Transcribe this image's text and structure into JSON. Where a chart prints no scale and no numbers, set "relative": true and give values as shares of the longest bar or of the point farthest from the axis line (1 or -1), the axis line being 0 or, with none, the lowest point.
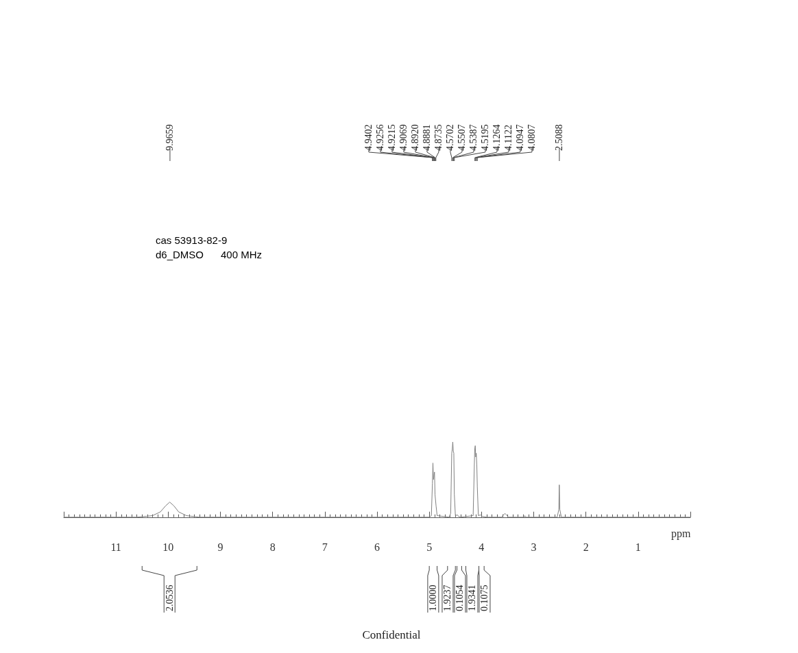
{
  "chart_data": {
    "type": "line",
    "title": "cas 53913-82-9",
    "subtitle": "d6_DMSO      400 MHz",
    "xlabel": "ppm",
    "relative": true,
    "grid": false,
    "marker": "none",
    "line_style": "solid",
    "tick_labels": "x",
    "xlim": [
      12,
      0
    ],
    "xticks": [
      {
        "value": 12,
        "label": null
      },
      11,
      10,
      9,
      8,
      7,
      6,
      5,
      4,
      3,
      2,
      1,
      {
        "value": 0,
        "label": null
      }
    ],
    "series": [
      {
        "color": "#808080",
        "x": [
          12,
          10.6,
          10.3,
          10.15,
          10.05,
          9.97,
          9.89,
          9.8,
          9.65,
          9.4,
          5.0,
          4.96,
          4.94,
          4.93,
          4.92,
          4.9,
          4.89,
          4.87,
          4.85,
          4.62,
          4.59,
          4.57,
          4.56,
          4.55,
          4.54,
          4.53,
          4.52,
          4.5,
          4.46,
          4.44,
          4.4,
          4.16,
          4.13,
          4.12,
          4.11,
          4.1,
          4.09,
          4.08,
          4.06,
          4.02,
          3.98,
          3.9,
          3.62,
          3.55,
          3.48,
          3.18,
          3.17,
          3.16,
          2.55,
          2.52,
          2.51,
          2.5,
          2.47,
          0
        ],
        "values": [
          0,
          0,
          0.02,
          0.07,
          0.15,
          0.2,
          0.15,
          0.07,
          0.02,
          0,
          0,
          0.02,
          0.45,
          0.72,
          0.5,
          0.6,
          0.3,
          0.15,
          0.02,
          0,
          0.05,
          0.85,
          0.9,
          1.0,
          0.88,
          0.85,
          0.3,
          0.02,
          0.03,
          0.01,
          0,
          0.02,
          0.9,
          0.95,
          0.8,
          0.85,
          0.7,
          0.4,
          0.02,
          0.03,
          0.01,
          0,
          0,
          0.05,
          0,
          0,
          0.02,
          0,
          0,
          0.1,
          0.43,
          0.1,
          0,
          0
        ]
      }
    ],
    "annotations": [
      "9.9659",
      "4.9402",
      "4.9256",
      "4.9215",
      "4.9069",
      "4.8920",
      "4.8881",
      "4.8735",
      "4.5702",
      "4.5507",
      "4.5387",
      "4.5195",
      "4.1264",
      "4.1122",
      "4.0947",
      "4.0807",
      "2.5088",
      "2.0536",
      "1.0000",
      "1.9237",
      "0.1054",
      "1.9341",
      "0.1075",
      "Confidential"
    ]
  }
}
